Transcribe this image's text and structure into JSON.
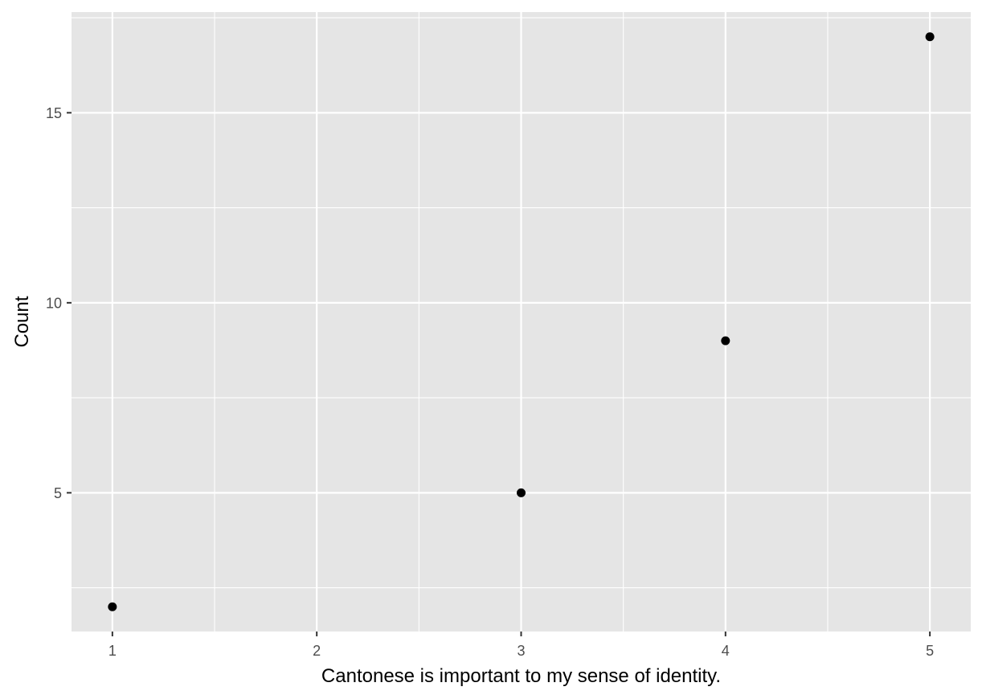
{
  "chart_data": {
    "type": "scatter",
    "title": "",
    "xlabel": "Cantonese is important to my sense of identity.",
    "ylabel": "Count",
    "x": [
      1,
      3,
      4,
      5
    ],
    "y": [
      2,
      5,
      9,
      17
    ],
    "xlim": [
      0.8,
      5.2
    ],
    "ylim": [
      1.35,
      17.65
    ],
    "x_ticks": [
      1,
      2,
      3,
      4,
      5
    ],
    "x_tick_labels": [
      "1",
      "2",
      "3",
      "4",
      "5"
    ],
    "y_ticks": [
      5,
      10,
      15
    ],
    "y_tick_labels": [
      "5",
      "10",
      "15"
    ],
    "grid": true,
    "legend": "none",
    "colors": {
      "panel_background": "#e5e5e5",
      "grid_line": "#ffffff",
      "point": "#000000",
      "tick_label": "#4d4d4d",
      "tick_mark": "#333333",
      "axis_title": "#000000"
    }
  }
}
